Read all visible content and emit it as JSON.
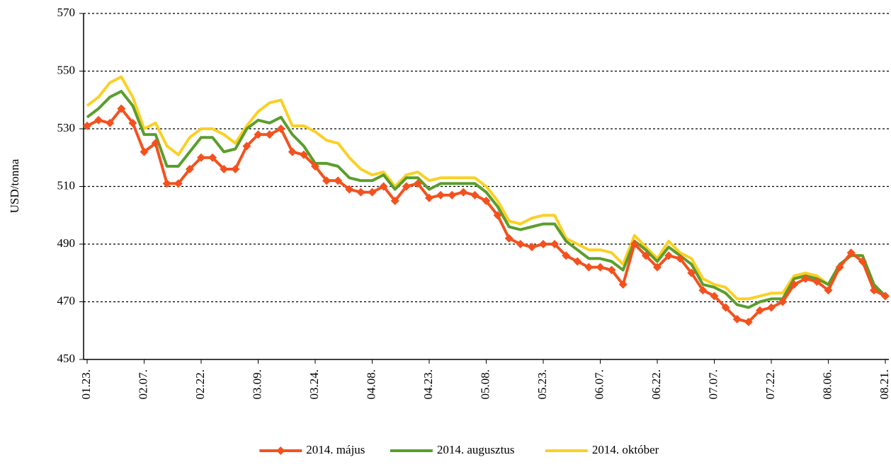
{
  "chart_data": {
    "type": "line",
    "y_label": "USD/tonna",
    "categories": [
      "01.23.",
      null,
      null,
      null,
      null,
      "02.07.",
      null,
      null,
      null,
      null,
      "02.22.",
      null,
      null,
      null,
      null,
      "03.09.",
      null,
      null,
      null,
      null,
      "03.24.",
      null,
      null,
      null,
      null,
      "04.08.",
      null,
      null,
      null,
      null,
      "04.23.",
      null,
      null,
      null,
      null,
      "05.08.",
      null,
      null,
      null,
      null,
      "05.23.",
      null,
      null,
      null,
      null,
      "06.07.",
      null,
      null,
      null,
      null,
      "06.22.",
      null,
      null,
      null,
      null,
      "07.07.",
      null,
      null,
      null,
      null,
      "07.22.",
      null,
      null,
      null,
      null,
      "08.06.",
      null,
      null,
      null,
      null,
      "08.21."
    ],
    "series": [
      {
        "name": "2014. május",
        "color": "#f4511e",
        "marker": "diamond",
        "values": [
          531,
          533,
          532,
          537,
          532,
          522,
          525,
          511,
          511,
          516,
          520,
          520,
          516,
          516,
          524,
          528,
          528,
          530,
          522,
          521,
          517,
          512,
          512,
          509,
          508,
          508,
          510,
          505,
          510,
          511,
          506,
          507,
          507,
          508,
          507,
          505,
          500,
          492,
          490,
          489,
          490,
          490,
          486,
          484,
          482,
          482,
          481,
          476,
          490,
          486,
          482,
          486,
          485,
          480,
          474,
          472,
          468,
          464,
          463,
          467,
          468,
          470,
          476,
          478,
          477,
          474,
          482,
          487,
          484,
          474,
          472
        ]
      },
      {
        "name": "2014. augusztus",
        "color": "#5a9e2c",
        "values": [
          534,
          537,
          541,
          543,
          538,
          528,
          528,
          517,
          517,
          522,
          527,
          527,
          522,
          523,
          530,
          533,
          532,
          534,
          528,
          524,
          518,
          518,
          517,
          513,
          512,
          512,
          514,
          509,
          513,
          513,
          509,
          511,
          511,
          511,
          511,
          508,
          503,
          496,
          495,
          496,
          497,
          497,
          491,
          488,
          485,
          485,
          484,
          481,
          491,
          488,
          484,
          489,
          486,
          483,
          476,
          475,
          473,
          469,
          468,
          470,
          471,
          471,
          478,
          479,
          478,
          476,
          483,
          486,
          486,
          476,
          472
        ]
      },
      {
        "name": "2014. október",
        "color": "#fbd025",
        "values": [
          538,
          541,
          546,
          548,
          541,
          530,
          532,
          524,
          521,
          527,
          530,
          530,
          528,
          525,
          531,
          536,
          539,
          540,
          531,
          531,
          529,
          526,
          525,
          520,
          516,
          514,
          515,
          510,
          514,
          515,
          512,
          513,
          513,
          513,
          513,
          510,
          505,
          498,
          497,
          499,
          500,
          500,
          492,
          490,
          488,
          488,
          487,
          483,
          493,
          489,
          485,
          491,
          487,
          485,
          478,
          476,
          475,
          471,
          471,
          472,
          473,
          473,
          479,
          480,
          479,
          476,
          483,
          486,
          486,
          476,
          471
        ]
      }
    ],
    "ylim": [
      450,
      570
    ],
    "yticks": [
      450,
      470,
      490,
      510,
      530,
      550,
      570
    ],
    "grid": true,
    "legend": "bottom"
  }
}
